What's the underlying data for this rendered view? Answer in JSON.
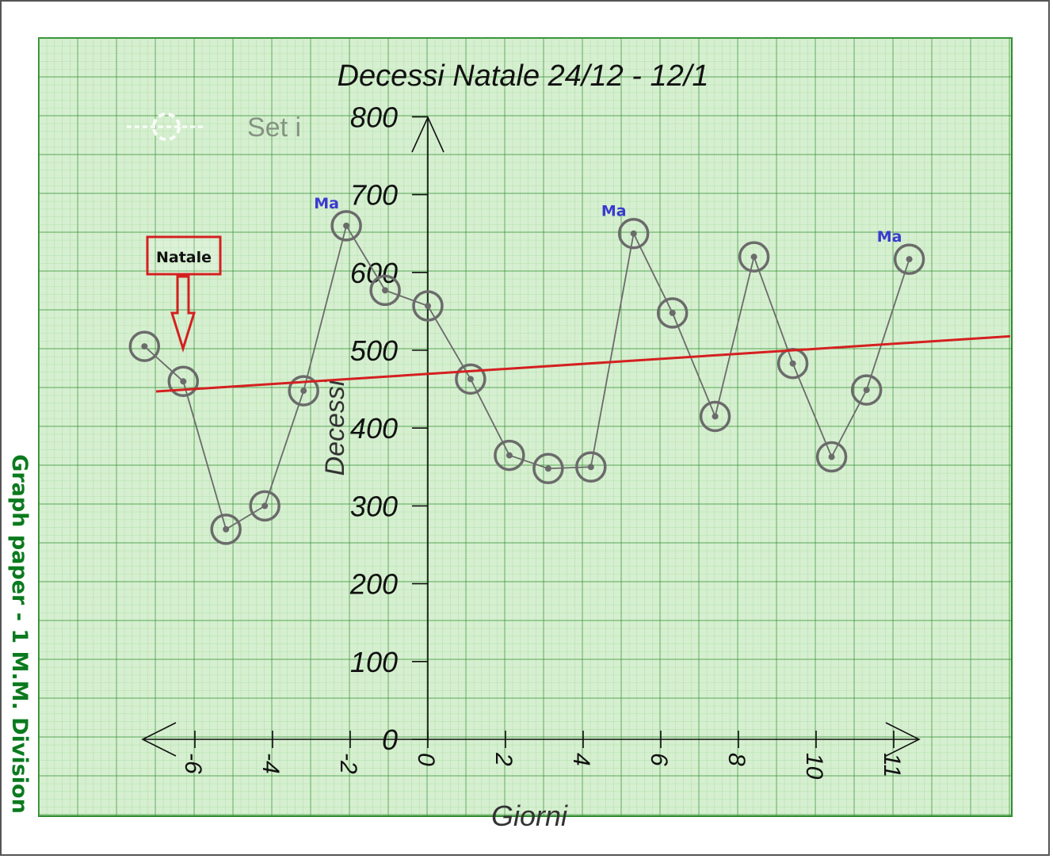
{
  "side_label": "Graph paper - 1 M.M. Division",
  "watermark": {
    "text": "Set i",
    "icon": "gear-icon"
  },
  "annotation": {
    "text": "Natale",
    "color": "#d42020",
    "arrow_icon": "arrow-down-icon"
  },
  "peak_labels": [
    "Ma",
    "Ma",
    "Ma"
  ],
  "colors": {
    "paper": "#d6efd0",
    "grid_minor": "#8fd38c",
    "grid_major": "#2e8b2e",
    "points": "#6b6b6b",
    "trend": "#d42020",
    "peak_label": "#3a3ad0"
  },
  "chart_data": {
    "type": "scatter",
    "title": "Decessi Natale 24/12 - 12/1",
    "xlabel": "Giorni",
    "ylabel": "Decessi",
    "x_ticks": [
      "-6",
      "-4",
      "-2",
      "0",
      "2",
      "4",
      "6",
      "8",
      "10",
      "11"
    ],
    "y_ticks": [
      "0",
      "100",
      "200",
      "300",
      "400",
      "500",
      "600",
      "700",
      "800"
    ],
    "ylim": [
      0,
      800
    ],
    "grid": true,
    "series": [
      {
        "x": [
          -7.3,
          -6.3,
          -5.2,
          -4.2,
          -3.2,
          -2.1,
          -1.1,
          0,
          1.1,
          2.1,
          3.1,
          4.2,
          5.3,
          6.3,
          7.4,
          8.4,
          9.4,
          10.4,
          11.3,
          12.4
        ],
        "y": [
          505,
          460,
          270,
          300,
          448,
          660,
          577,
          557,
          463,
          365,
          348,
          350,
          650,
          548,
          415,
          620,
          483,
          363,
          449,
          617
        ]
      }
    ],
    "trendline": {
      "x": [
        -7,
        15
      ],
      "y": [
        447,
        518
      ]
    },
    "peaks": [
      {
        "label": "Ma",
        "x": -2.1,
        "y": 660
      },
      {
        "label": "Ma",
        "x": 5.3,
        "y": 650
      },
      {
        "label": "Ma",
        "x": 12.4,
        "y": 617
      }
    ],
    "annotation": {
      "text": "Natale",
      "x": -6.3
    }
  }
}
